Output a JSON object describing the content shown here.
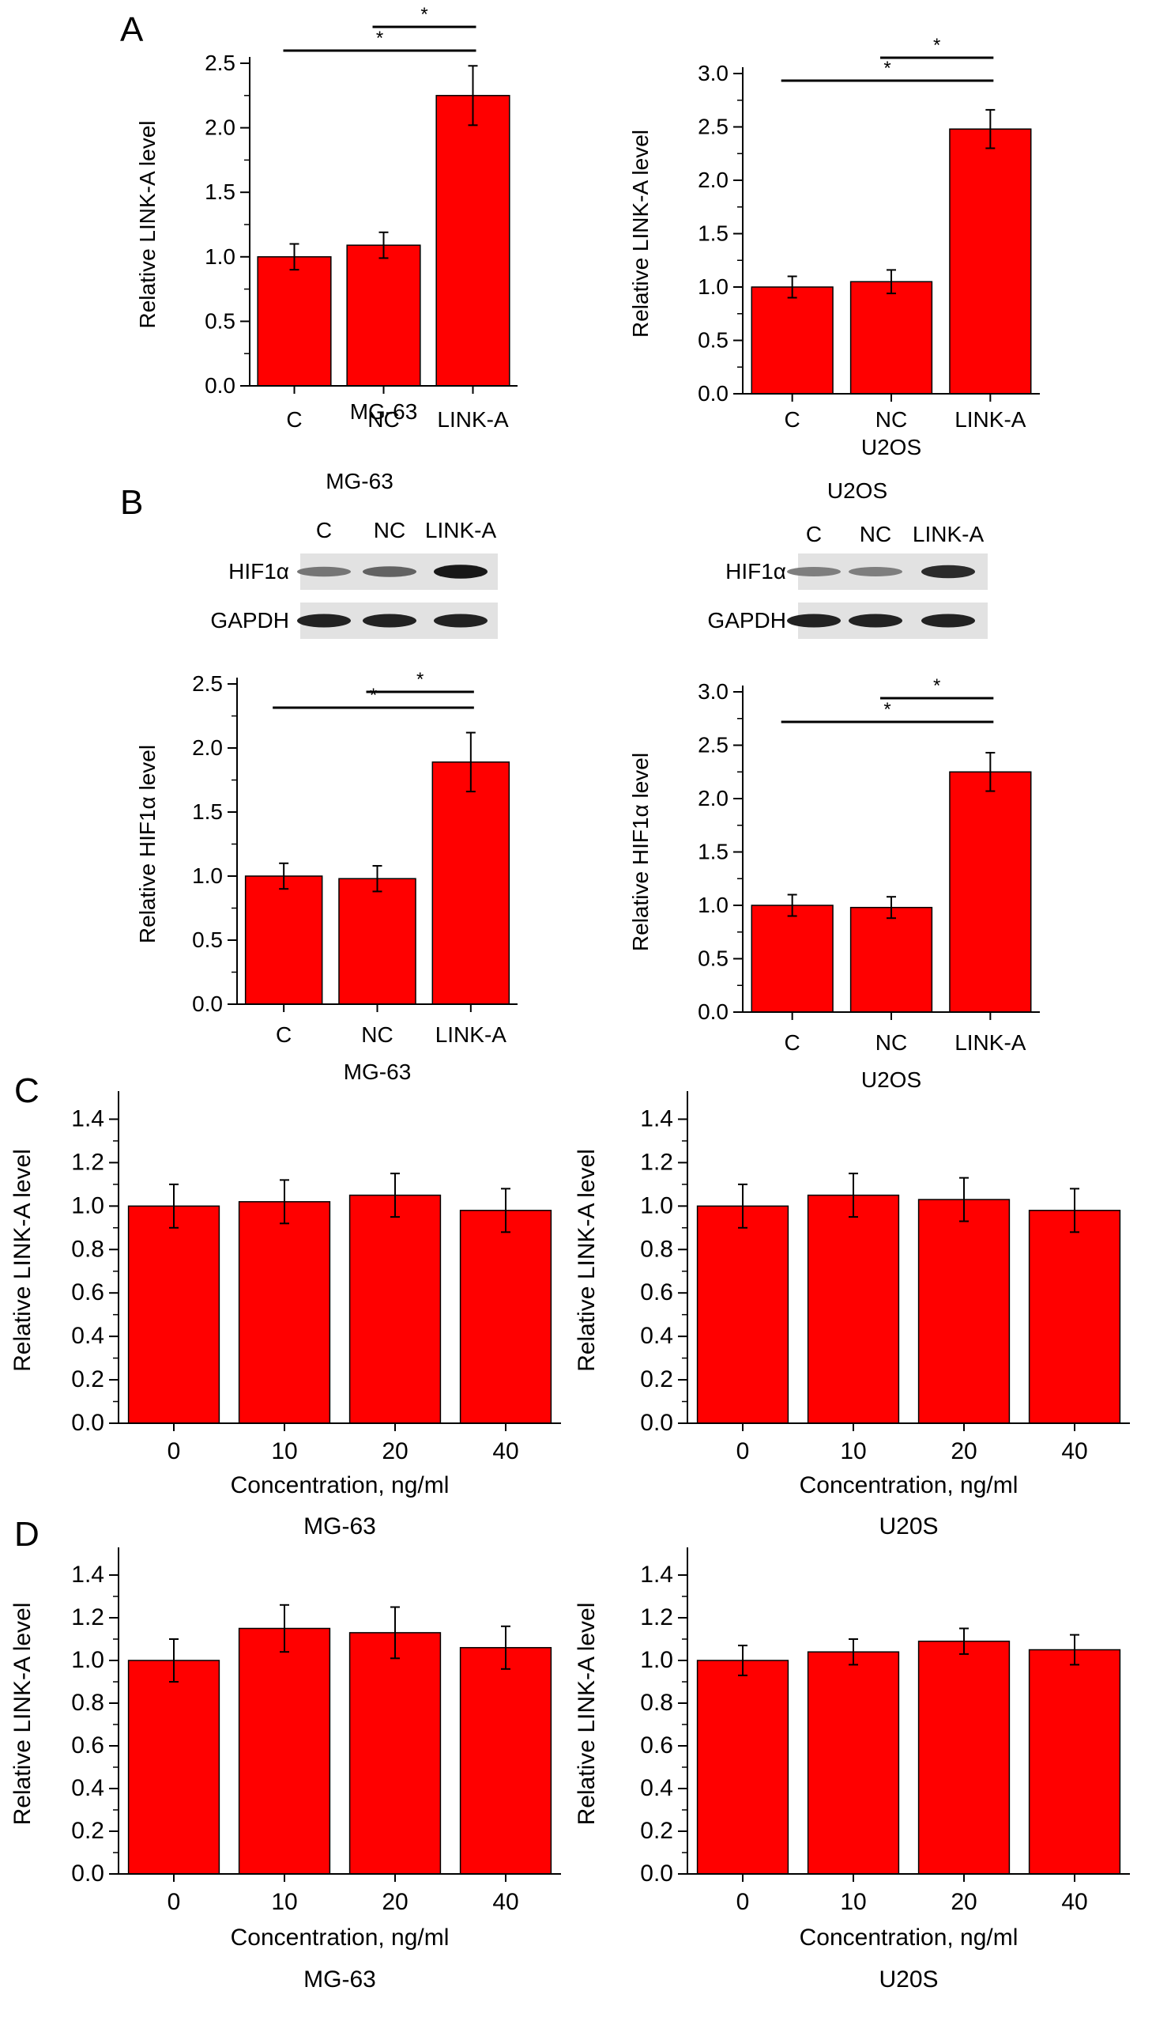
{
  "panel_letters": [
    "A",
    "B",
    "C",
    "D"
  ],
  "colors": {
    "bar": "#ff0000",
    "bar_edge": "#000000",
    "axis": "#000000"
  },
  "blots": {
    "mg63": {
      "title": "MG-63",
      "lanes": [
        "C",
        "NC",
        "LINK-A"
      ],
      "rows": [
        {
          "label": "HIF1α",
          "intensities": [
            0.45,
            0.55,
            0.95
          ]
        },
        {
          "label": "GAPDH",
          "intensities": [
            0.9,
            0.9,
            0.9
          ]
        }
      ]
    },
    "u2os": {
      "title": "U2OS",
      "lanes": [
        "C",
        "NC",
        "LINK-A"
      ],
      "rows": [
        {
          "label": "HIF1α",
          "intensities": [
            0.4,
            0.4,
            0.85
          ]
        },
        {
          "label": "GAPDH",
          "intensities": [
            0.9,
            0.9,
            0.9
          ]
        }
      ]
    }
  },
  "chart_data": [
    {
      "panel": "A",
      "type": "bar",
      "title": "",
      "categories": [
        "C",
        "NC",
        "LINK-A"
      ],
      "values": [
        1.0,
        1.09,
        2.25
      ],
      "errors": [
        0.1,
        0.1,
        0.23
      ],
      "xlabel": "MG-63",
      "ylabel": "Relative LINK-A level",
      "ylim": [
        0,
        2.5
      ],
      "yticks": [
        "0.0",
        "0.5",
        "1.0",
        "1.5",
        "2.0",
        "2.5"
      ],
      "grid": false,
      "significance": [
        {
          "from": 1,
          "to": 2,
          "label": "*"
        },
        {
          "from": 0,
          "to": 2,
          "label": "*"
        }
      ]
    },
    {
      "panel": "A",
      "type": "bar",
      "title": "",
      "categories": [
        "C",
        "NC",
        "LINK-A"
      ],
      "values": [
        1.0,
        1.05,
        2.48
      ],
      "errors": [
        0.1,
        0.11,
        0.18
      ],
      "xlabel": "U2OS",
      "ylabel": "Relative LINK-A level",
      "ylim": [
        0,
        3.0
      ],
      "yticks": [
        "0.0",
        "0.5",
        "1.0",
        "1.5",
        "2.0",
        "2.5",
        "3.0"
      ],
      "grid": false,
      "significance": [
        {
          "from": 1,
          "to": 2,
          "label": "*"
        },
        {
          "from": 0,
          "to": 2,
          "label": "*"
        }
      ]
    },
    {
      "panel": "B",
      "type": "bar",
      "title": "",
      "categories": [
        "C",
        "NC",
        "LINK-A"
      ],
      "values": [
        1.0,
        0.98,
        1.89
      ],
      "errors": [
        0.1,
        0.1,
        0.23
      ],
      "xlabel": "MG-63",
      "ylabel": "Relative HIF1α level",
      "ylim": [
        0,
        2.5
      ],
      "yticks": [
        "0.0",
        "0.5",
        "1.0",
        "1.5",
        "2.0",
        "2.5"
      ],
      "grid": false,
      "significance": [
        {
          "from": 1,
          "to": 2,
          "label": "*"
        },
        {
          "from": 0,
          "to": 2,
          "label": "*"
        }
      ]
    },
    {
      "panel": "B",
      "type": "bar",
      "title": "",
      "categories": [
        "C",
        "NC",
        "LINK-A"
      ],
      "values": [
        1.0,
        0.98,
        2.25
      ],
      "errors": [
        0.1,
        0.1,
        0.18
      ],
      "xlabel": "U2OS",
      "ylabel": "Relative HIF1α level",
      "ylim": [
        0,
        3.0
      ],
      "yticks": [
        "0.0",
        "0.5",
        "1.0",
        "1.5",
        "2.0",
        "2.5",
        "3.0"
      ],
      "grid": false,
      "significance": [
        {
          "from": 1,
          "to": 2,
          "label": "*"
        },
        {
          "from": 0,
          "to": 2,
          "label": "*"
        }
      ]
    },
    {
      "panel": "C",
      "type": "bar",
      "title": "MG-63",
      "categories": [
        "0",
        "10",
        "20",
        "40"
      ],
      "values": [
        1.0,
        1.02,
        1.05,
        0.98
      ],
      "errors": [
        0.1,
        0.1,
        0.1,
        0.1
      ],
      "xlabel": "Concentration, ng/ml",
      "ylabel": "Relative LINK-A level",
      "ylim": [
        0,
        1.5
      ],
      "yticks": [
        "0.0",
        "0.2",
        "0.4",
        "0.6",
        "0.8",
        "1.0",
        "1.2",
        "1.4"
      ],
      "grid": false,
      "significance": []
    },
    {
      "panel": "C",
      "type": "bar",
      "title": "U20S",
      "categories": [
        "0",
        "10",
        "20",
        "40"
      ],
      "values": [
        1.0,
        1.05,
        1.03,
        0.98
      ],
      "errors": [
        0.1,
        0.1,
        0.1,
        0.1
      ],
      "xlabel": "Concentration, ng/ml",
      "ylabel": "Relative LINK-A level",
      "ylim": [
        0,
        1.5
      ],
      "yticks": [
        "0.0",
        "0.2",
        "0.4",
        "0.6",
        "0.8",
        "1.0",
        "1.2",
        "1.4"
      ],
      "grid": false,
      "significance": []
    },
    {
      "panel": "D",
      "type": "bar",
      "title": "MG-63",
      "categories": [
        "0",
        "10",
        "20",
        "40"
      ],
      "values": [
        1.0,
        1.15,
        1.13,
        1.06
      ],
      "errors": [
        0.1,
        0.11,
        0.12,
        0.1
      ],
      "xlabel": "Concentration, ng/ml",
      "ylabel": "Relative LINK-A level",
      "ylim": [
        0,
        1.5
      ],
      "yticks": [
        "0.0",
        "0.2",
        "0.4",
        "0.6",
        "0.8",
        "1.0",
        "1.2",
        "1.4"
      ],
      "grid": false,
      "significance": []
    },
    {
      "panel": "D",
      "type": "bar",
      "title": "U20S",
      "categories": [
        "0",
        "10",
        "20",
        "40"
      ],
      "values": [
        1.0,
        1.04,
        1.09,
        1.05
      ],
      "errors": [
        0.07,
        0.06,
        0.06,
        0.07
      ],
      "xlabel": "Concentration, ng/ml",
      "ylabel": "Relative LINK-A level",
      "ylim": [
        0,
        1.5
      ],
      "yticks": [
        "0.0",
        "0.2",
        "0.4",
        "0.6",
        "0.8",
        "1.0",
        "1.2",
        "1.4"
      ],
      "grid": false,
      "significance": []
    }
  ]
}
